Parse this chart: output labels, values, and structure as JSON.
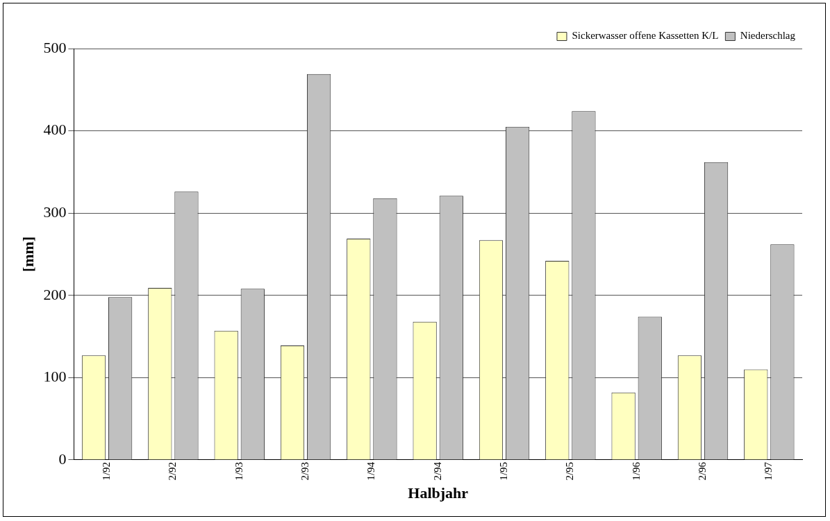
{
  "chart_data": {
    "type": "bar",
    "xlabel": "Halbjahr",
    "ylabel": "[mm]",
    "categories": [
      "1/92",
      "2/92",
      "1/93",
      "2/93",
      "1/94",
      "2/94",
      "1/95",
      "2/95",
      "1/96",
      "2/96",
      "1/97"
    ],
    "series": [
      {
        "name": "Sickerwasser offene Kassetten K/L",
        "color": "#ffffc0",
        "values": [
          127,
          209,
          157,
          139,
          269,
          168,
          267,
          242,
          82,
          127,
          110
        ]
      },
      {
        "name": "Niederschlag",
        "color": "#c0c0c0",
        "values": [
          198,
          326,
          208,
          469,
          318,
          321,
          405,
          424,
          174,
          362,
          262
        ]
      }
    ],
    "ylim": [
      0,
      500
    ],
    "yticks": [
      0,
      100,
      200,
      300,
      400,
      500
    ],
    "grid": "y",
    "legend": "top right"
  }
}
